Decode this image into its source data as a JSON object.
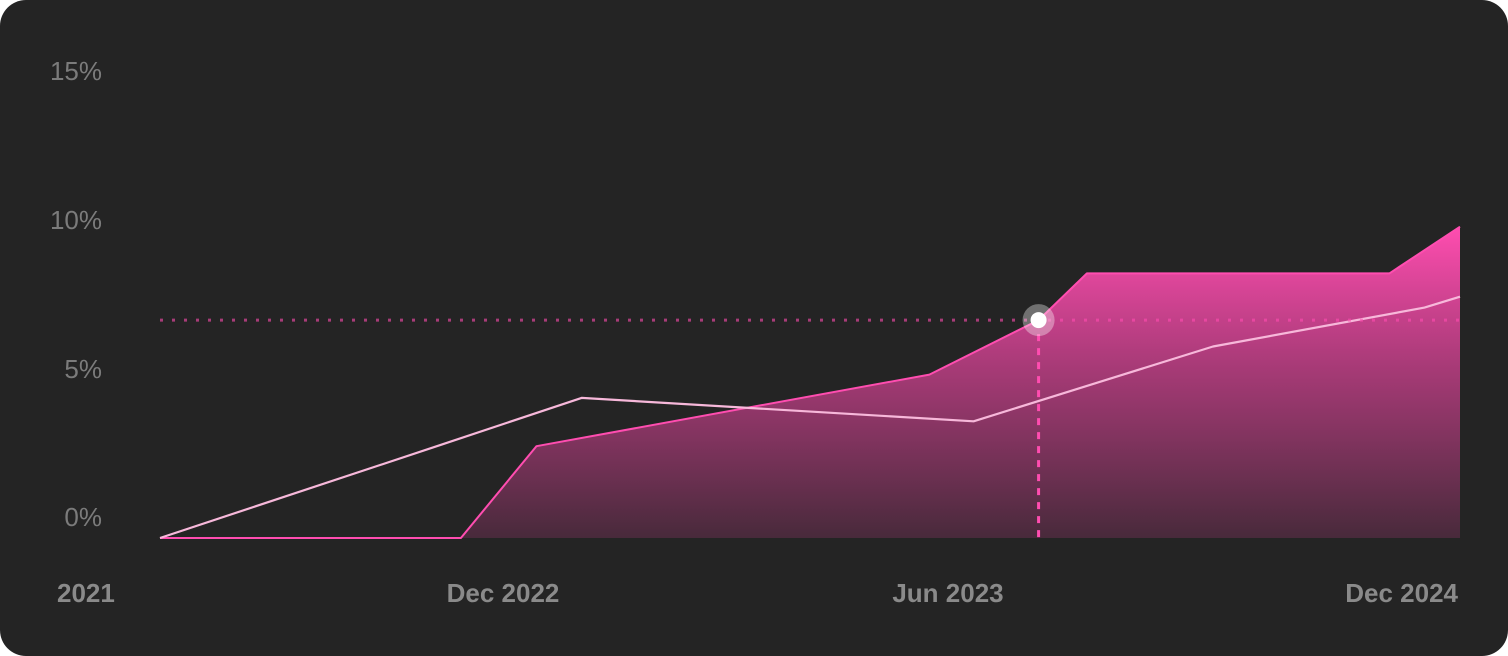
{
  "chart_data": {
    "type": "area",
    "title": "",
    "xlabel": "",
    "ylabel": "",
    "x_ticks": [
      "2021",
      "Dec 2022",
      "Jun 2023",
      "Dec 2024"
    ],
    "y_ticks": [
      "0%",
      "5%",
      "10%",
      "15%"
    ],
    "ylim": [
      0,
      15
    ],
    "grid": false,
    "legend": "none",
    "series": [
      {
        "style": "area",
        "color": "#ff4db0",
        "points": [
          {
            "x": 0.0,
            "y": 0.0
          },
          {
            "x": 1.389,
            "y": 0.0
          },
          {
            "x": 1.737,
            "y": 2.95
          },
          {
            "x": 3.551,
            "y": 5.25
          },
          {
            "x": 4.055,
            "y": 7.0
          },
          {
            "x": 4.278,
            "y": 8.5
          },
          {
            "x": 5.674,
            "y": 8.5
          },
          {
            "x": 6.0,
            "y": 10.0
          }
        ]
      },
      {
        "style": "line",
        "color": "#f7b8da",
        "points": [
          {
            "x": 0.0,
            "y": 0.0
          },
          {
            "x": 1.3,
            "y": 3.0
          },
          {
            "x": 1.946,
            "y": 4.5
          },
          {
            "x": 3.755,
            "y": 3.75
          },
          {
            "x": 4.86,
            "y": 6.15
          },
          {
            "x": 5.836,
            "y": 7.4
          },
          {
            "x": 6.0,
            "y": 7.75
          }
        ]
      }
    ],
    "highlight": {
      "x": 4.055,
      "y": 7.0,
      "color": "#ffffff",
      "guide_color": "#ff4db0"
    }
  }
}
